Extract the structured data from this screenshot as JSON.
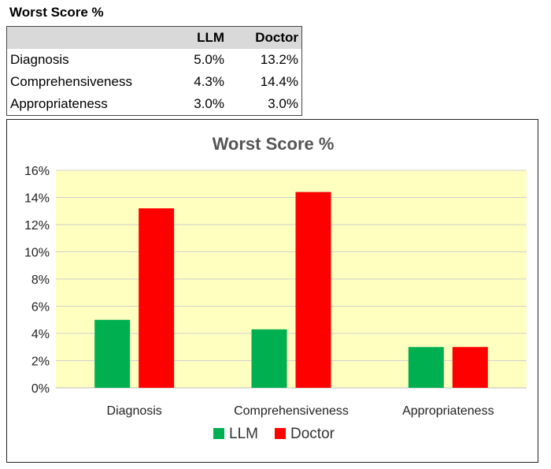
{
  "table": {
    "title": "Worst Score %",
    "headers": [
      "",
      "LLM",
      "Doctor"
    ],
    "rows": [
      {
        "label": "Diagnosis",
        "llm": "5.0%",
        "doctor": "13.2%"
      },
      {
        "label": "Comprehensiveness",
        "llm": "4.3%",
        "doctor": "14.4%"
      },
      {
        "label": "Appropriateness",
        "llm": "3.0%",
        "doctor": "3.0%"
      }
    ]
  },
  "chart_data": {
    "type": "bar",
    "title": "Worst Score %",
    "categories": [
      "Diagnosis",
      "Comprehensiveness",
      "Appropriateness"
    ],
    "series": [
      {
        "name": "LLM",
        "values": [
          5.0,
          4.3,
          3.0
        ],
        "color": "#00b050"
      },
      {
        "name": "Doctor",
        "values": [
          13.2,
          14.4,
          3.0
        ],
        "color": "#ff0000"
      }
    ],
    "ylim": [
      0,
      16
    ],
    "yticks": [
      "0%",
      "2%",
      "4%",
      "6%",
      "8%",
      "10%",
      "12%",
      "14%",
      "16%"
    ],
    "grid": true,
    "legend": "bottom",
    "plot_background": "#ffffc0"
  }
}
